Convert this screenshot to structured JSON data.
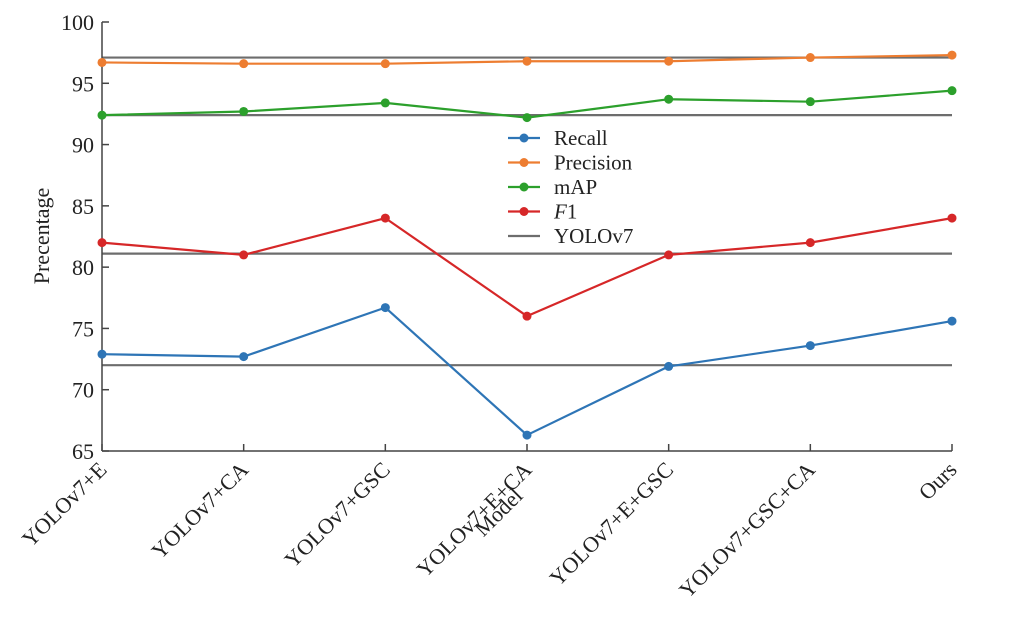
{
  "chart_data": {
    "type": "line",
    "title": "",
    "xlabel": "Model",
    "ylabel": "Precentage",
    "ylim": [
      65,
      100
    ],
    "yticks": [
      65,
      70,
      75,
      80,
      85,
      90,
      95,
      100
    ],
    "categories": [
      "YOLOv7+E",
      "YOLOv7+CA",
      "YOLOv7+GSC",
      "YOLOv7+E+CA",
      "YOLOv7+E+GSC",
      "YOLOv7+GSC+CA",
      "Ours"
    ],
    "series": [
      {
        "name": "Recall",
        "color": "#2e75b6",
        "values": [
          72.9,
          72.7,
          76.7,
          66.3,
          71.9,
          73.6,
          75.6
        ]
      },
      {
        "name": "Precision",
        "color": "#ed7d31",
        "values": [
          96.7,
          96.6,
          96.6,
          96.8,
          96.8,
          97.1,
          97.3
        ]
      },
      {
        "name": "mAP",
        "color": "#2ca02c",
        "values": [
          92.4,
          92.7,
          93.4,
          92.2,
          93.7,
          93.5,
          94.4
        ]
      },
      {
        "name": "F1",
        "color": "#d62728",
        "values": [
          82.0,
          81.0,
          84.0,
          76.0,
          81.0,
          82.0,
          84.0
        ]
      }
    ],
    "baseline": {
      "name": "YOLOv7",
      "color": "#6d6d6d",
      "values": [
        97.1,
        92.4,
        81.1,
        72.0
      ]
    },
    "grid": false,
    "legend_position": "center"
  }
}
